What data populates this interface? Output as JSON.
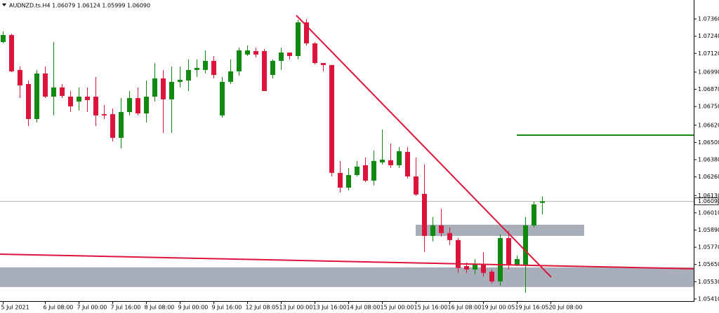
{
  "chart_data": {
    "type": "candlestick",
    "title": "AUDNZD.ts.H4  1.06079 1.06124 1.05999 1.06090",
    "up_color": "#0f8a0f",
    "down_color": "#dc143c",
    "ohlc": [
      [
        1.07199,
        1.07273,
        1.0719,
        1.07248
      ],
      [
        1.07248,
        1.07258,
        1.0699,
        1.06995
      ],
      [
        1.07005,
        1.07029,
        1.06809,
        1.06897
      ],
      [
        1.06907,
        1.06931,
        1.06614,
        1.06663
      ],
      [
        1.06663,
        1.07005,
        1.06639,
        1.0698
      ],
      [
        1.0698,
        1.07029,
        1.06809,
        1.06819
      ],
      [
        1.06819,
        1.07199,
        1.06688,
        1.06883
      ],
      [
        1.06883,
        1.06907,
        1.06809,
        1.06824
      ],
      [
        1.06819,
        1.06858,
        1.06712,
        1.06751
      ],
      [
        1.06785,
        1.06883,
        1.06722,
        1.06819
      ],
      [
        1.06819,
        1.06883,
        1.06712,
        1.06795
      ],
      [
        1.06819,
        1.06956,
        1.06614,
        1.06688
      ],
      [
        1.06697,
        1.06761,
        1.06663,
        1.06688
      ],
      [
        1.06697,
        1.06736,
        1.06507,
        1.06532
      ],
      [
        1.06532,
        1.06809,
        1.06458,
        1.06712
      ],
      [
        1.06712,
        1.06858,
        1.06688,
        1.06809
      ],
      [
        1.06809,
        1.06883,
        1.06688,
        1.06702
      ],
      [
        1.06702,
        1.06931,
        1.06639,
        1.06819
      ],
      [
        1.06819,
        1.07053,
        1.06785,
        1.06946
      ],
      [
        1.06946,
        1.07005,
        1.06566,
        1.068
      ],
      [
        1.068,
        1.07029,
        1.06566,
        1.06922
      ],
      [
        1.06922,
        1.07029,
        1.06883,
        1.06936
      ],
      [
        1.06931,
        1.07078,
        1.06858,
        1.07005
      ],
      [
        1.07005,
        1.07078,
        1.06956,
        1.07019
      ],
      [
        1.07005,
        1.07141,
        1.0698,
        1.07068
      ],
      [
        1.07068,
        1.07102,
        1.06946,
        1.0697
      ],
      [
        1.06688,
        1.06956,
        1.06673,
        1.06922
      ],
      [
        1.06922,
        1.07078,
        1.06907,
        1.06995
      ],
      [
        1.06995,
        1.0716,
        1.06965,
        1.07141
      ],
      [
        1.07112,
        1.07175,
        1.07102,
        1.07141
      ],
      [
        1.07136,
        1.0716,
        1.07092,
        1.07112
      ],
      [
        1.07136,
        1.07151,
        1.06858,
        1.06858
      ],
      [
        1.0697,
        1.07078,
        1.06946,
        1.07068
      ],
      [
        1.07068,
        1.0716,
        1.07005,
        1.07126
      ],
      [
        1.07126,
        1.07126,
        1.07078,
        1.07102
      ],
      [
        1.07102,
        1.07355,
        1.07078,
        1.07336
      ],
      [
        1.07336,
        1.0736,
        1.07175,
        1.0719
      ],
      [
        1.0719,
        1.07199,
        1.07043,
        1.07053
      ],
      [
        1.07053,
        1.07053,
        1.06995,
        1.07039
      ],
      [
        1.07039,
        1.07039,
        1.06263,
        1.06288
      ],
      [
        1.06288,
        1.06371,
        1.06151,
        1.06185
      ],
      [
        1.06185,
        1.06322,
        1.06166,
        1.06273
      ],
      [
        1.06273,
        1.06371,
        1.06263,
        1.06332
      ],
      [
        1.06341,
        1.06395,
        1.06224,
        1.06234
      ],
      [
        1.06234,
        1.06444,
        1.062,
        1.06371
      ],
      [
        1.06361,
        1.0659,
        1.06346,
        1.0638
      ],
      [
        1.06376,
        1.06493,
        1.06322,
        1.06341
      ],
      [
        1.06341,
        1.06468,
        1.06322,
        1.06439
      ],
      [
        1.06434,
        1.06468,
        1.06249,
        1.06263
      ],
      [
        1.06263,
        1.06395,
        1.06127,
        1.06137
      ],
      [
        1.06142,
        1.06346,
        1.05737,
        1.05849
      ],
      [
        1.05849,
        1.05981,
        1.0581,
        1.05922
      ],
      [
        1.05922,
        1.06039,
        1.05844,
        1.05869
      ],
      [
        1.05869,
        1.05908,
        1.05786,
        1.0582
      ],
      [
        1.0582,
        1.05834,
        1.05591,
        1.05625
      ],
      [
        1.05639,
        1.05664,
        1.05591,
        1.05615
      ],
      [
        1.05615,
        1.05688,
        1.05581,
        1.05654
      ],
      [
        1.05654,
        1.05737,
        1.05566,
        1.05591
      ],
      [
        1.056,
        1.05615,
        1.05518,
        1.05532
      ],
      [
        1.05532,
        1.05859,
        1.05503,
        1.05834
      ],
      [
        1.05834,
        1.05883,
        1.05615,
        1.05649
      ],
      [
        1.05649,
        1.05713,
        1.05639,
        1.05688
      ],
      [
        1.05649,
        1.05981,
        1.05454,
        1.05922
      ],
      [
        1.05922,
        1.06088,
        1.05908,
        1.06068
      ],
      [
        1.06079,
        1.06124,
        1.05999,
        1.0609
      ]
    ],
    "xlim": [
      -0.33,
      82
    ],
    "ylim": [
      1.05395,
      1.07492
    ],
    "xticks": [
      {
        "value": 0,
        "label": "5 Jul 2021"
      },
      {
        "value": 5,
        "label": "6 Jul 08:00"
      },
      {
        "value": 9,
        "label": "7 Jul 00:00"
      },
      {
        "value": 13,
        "label": "7 Jul 16:00"
      },
      {
        "value": 17,
        "label": "8 Jul 08:00"
      },
      {
        "value": 21,
        "label": "9 Jul 00:00"
      },
      {
        "value": 25,
        "label": "9 Jul 16:00"
      },
      {
        "value": 29,
        "label": "12 Jul 08:05"
      },
      {
        "value": 33,
        "label": "13 Jul 00:00"
      },
      {
        "value": 37,
        "label": "13 Jul 16:00"
      },
      {
        "value": 41,
        "label": "14 Jul 08:00"
      },
      {
        "value": 45,
        "label": "15 Jul 00:00"
      },
      {
        "value": 49,
        "label": "15 Jul 16:00"
      },
      {
        "value": 53,
        "label": "16 Jul 08:00"
      },
      {
        "value": 57,
        "label": "19 Jul 00:05"
      },
      {
        "value": 61,
        "label": "19 Jul 16:05"
      },
      {
        "value": 65,
        "label": "20 Jul 08:00"
      }
    ],
    "yticks": [
      {
        "value": 1.0736,
        "label": "1.07360"
      },
      {
        "value": 1.0724,
        "label": "1.07240"
      },
      {
        "value": 1.0712,
        "label": "1.07120"
      },
      {
        "value": 1.0699,
        "label": "1.06990"
      },
      {
        "value": 1.0687,
        "label": "1.06870"
      },
      {
        "value": 1.0675,
        "label": "1.06750"
      },
      {
        "value": 1.0662,
        "label": "1.06620"
      },
      {
        "value": 1.065,
        "label": "1.06500"
      },
      {
        "value": 1.0638,
        "label": "1.06380"
      },
      {
        "value": 1.0626,
        "label": "1.06260"
      },
      {
        "value": 1.0613,
        "label": "1.06130"
      },
      {
        "value": 1.0601,
        "label": "1.06010"
      },
      {
        "value": 1.0589,
        "label": "1.05890"
      },
      {
        "value": 1.0577,
        "label": "1.05770"
      },
      {
        "value": 1.0565,
        "label": "1.05650"
      },
      {
        "value": 1.0553,
        "label": "1.05530"
      },
      {
        "value": 1.0541,
        "label": "1.05410"
      }
    ],
    "current_price": {
      "value": 1.0609,
      "label": "1.06090"
    },
    "zones": [
      {
        "x": [
          49,
          69
        ],
        "y": [
          1.05849,
          1.05927
        ],
        "color": "#a9afba"
      },
      {
        "x": [
          -0.33,
          82
        ],
        "y": [
          1.05493,
          1.0563
        ],
        "color": "#a9afba"
      }
    ],
    "lines": [
      {
        "x": [
          34.83,
          65.08
        ],
        "y": [
          1.07385,
          1.05562
        ],
        "color": "#dc143c"
      },
      {
        "x": [
          -0.33,
          82
        ],
        "y": [
          1.05722,
          1.0562
        ],
        "color": "#dc143c"
      },
      {
        "x": [
          61,
          82
        ],
        "y": [
          1.06551,
          1.06551
        ],
        "color": "#0f8a0f"
      }
    ]
  }
}
